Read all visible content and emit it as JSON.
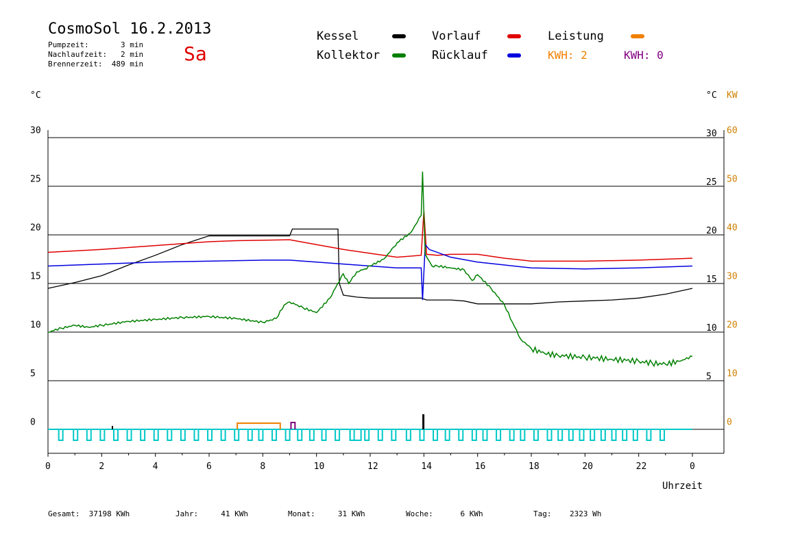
{
  "header": {
    "title": "CosmoSol 16.2.2013",
    "day": "Sa",
    "pumpzeit": "Pumpzeit:       3 min",
    "nachlaufzeit": "Nachlaufzeit:   2 min",
    "brennerzeit": "Brennerzeit:  489 min"
  },
  "legend": {
    "kessel": "Kessel",
    "kollektor": "Kollektor",
    "vorlauf": "Vorlauf",
    "ruecklauf": "Rücklauf",
    "leistung": "Leistung",
    "kwh1": "KWH: 2",
    "kwh2": "KWH: 0"
  },
  "units": {
    "left": "°C",
    "right_c": "°C",
    "right_kw": "KW",
    "x_label": "Uhrzeit"
  },
  "footer": {
    "gesamt": "Gesamt:  37198 KWh",
    "jahr": "Jahr:     41 KWh",
    "monat": "Monat:     31 KWh",
    "woche": "Woche:      6 KWh",
    "tag": "Tag:    2323 Wh"
  },
  "colors": {
    "kessel": "#000000",
    "kollektor": "#008000",
    "vorlauf": "#e00000",
    "ruecklauf": "#0000e0",
    "leistung": "#f08000",
    "kwh2": "#800080",
    "pump": "#00c8c8",
    "axis_kw": "#d08000"
  },
  "chart_data": {
    "type": "line",
    "xlabel": "Uhrzeit",
    "ylabel": "°C",
    "ylim": [
      -2.5,
      31
    ],
    "xlim": [
      0,
      24
    ],
    "x_ticks": [
      "0",
      "2",
      "4",
      "6",
      "8",
      "10",
      "12",
      "14",
      "16",
      "18",
      "20",
      "22",
      "0"
    ],
    "y_ticks_left": [
      "0",
      "5",
      "10",
      "15",
      "20",
      "25",
      "30"
    ],
    "y_ticks_right_c": [
      "5",
      "10",
      "15",
      "20",
      "25",
      "30"
    ],
    "y_ticks_right_kw": [
      "0",
      "10",
      "20",
      "30",
      "40",
      "50",
      "60"
    ],
    "series": [
      {
        "name": "Kessel",
        "color": "#000000",
        "x": [
          0,
          1,
          2,
          3,
          4,
          5,
          6,
          6.5,
          9.0,
          9.1,
          10.8,
          10.85,
          11,
          11.5,
          12,
          13,
          13.9,
          14.1,
          15,
          15.5,
          16,
          18,
          19,
          20,
          21,
          22,
          23,
          24
        ],
        "y": [
          14.5,
          15.1,
          15.8,
          16.9,
          17.9,
          19.0,
          19.9,
          19.9,
          19.9,
          20.6,
          20.6,
          15.0,
          13.8,
          13.6,
          13.5,
          13.5,
          13.5,
          13.3,
          13.3,
          13.2,
          12.9,
          12.9,
          13.1,
          13.2,
          13.3,
          13.5,
          13.9,
          14.5
        ]
      },
      {
        "name": "Vorlauf",
        "color": "#e00000",
        "x": [
          0,
          2,
          4,
          6,
          7,
          9,
          10,
          11,
          12,
          13,
          13.9,
          14.0,
          14.1,
          14.5,
          15,
          16,
          17,
          18,
          20,
          22,
          24
        ],
        "y": [
          18.2,
          18.5,
          18.9,
          19.3,
          19.4,
          19.5,
          19.0,
          18.5,
          18.1,
          17.7,
          17.9,
          22.5,
          18.0,
          17.9,
          18.0,
          18.0,
          17.6,
          17.3,
          17.3,
          17.4,
          17.6
        ]
      },
      {
        "name": "Rücklauf",
        "color": "#0000e0",
        "x": [
          0,
          2,
          4,
          6,
          8,
          9,
          10,
          11,
          12,
          13,
          13.9,
          13.95,
          14.05,
          14.2,
          15,
          16,
          17,
          18,
          20,
          22,
          24
        ],
        "y": [
          16.8,
          17.0,
          17.2,
          17.3,
          17.4,
          17.4,
          17.2,
          17.0,
          16.8,
          16.6,
          16.6,
          13.3,
          19.0,
          18.5,
          17.7,
          17.2,
          16.9,
          16.6,
          16.5,
          16.6,
          16.8
        ]
      },
      {
        "name": "Kollektor",
        "color": "#008000",
        "x": [
          0,
          0.5,
          1,
          1.5,
          2,
          3,
          4,
          5,
          6,
          7,
          8,
          8.5,
          8.8,
          9,
          9.5,
          10,
          10.5,
          11,
          11.2,
          11.5,
          11.8,
          12,
          12.5,
          12.9,
          13,
          13.5,
          13.9,
          13.95,
          14.05,
          14.3,
          14.5,
          15,
          15.5,
          15.8,
          16,
          16.5,
          17,
          17.3,
          17.6,
          18,
          18.5,
          19,
          20,
          21,
          22,
          22.5,
          23,
          23.5,
          24
        ],
        "y": [
          10.0,
          10.4,
          10.7,
          10.5,
          10.7,
          11.1,
          11.3,
          11.5,
          11.6,
          11.4,
          11.0,
          11.4,
          12.8,
          13.1,
          12.5,
          12.0,
          13.5,
          16.0,
          15.0,
          16.2,
          16.5,
          16.8,
          17.5,
          18.8,
          19.2,
          20.2,
          22.0,
          26.5,
          18.0,
          16.8,
          16.8,
          16.6,
          16.4,
          15.3,
          15.9,
          14.5,
          12.8,
          11.0,
          9.3,
          8.3,
          7.8,
          7.6,
          7.4,
          7.2,
          7.0,
          6.8,
          6.7,
          7.0,
          7.5
        ]
      }
    ]
  }
}
